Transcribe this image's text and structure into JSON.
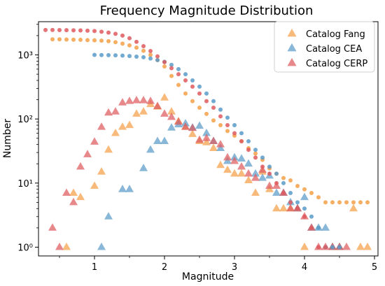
{
  "chart_data": {
    "type": "scatter",
    "title": "Frequency Magnitude Distribution",
    "xlabel": "Magnitude",
    "ylabel": "Number",
    "xlim": [
      0.2,
      5.05
    ],
    "ylim": [
      0.73,
      3300
    ],
    "yscale": "log",
    "grid": false,
    "legend_position": "top-right",
    "x_ticks": [
      1,
      2,
      3,
      4,
      5
    ],
    "x_tick_labels": [
      "1",
      "2",
      "3",
      "4",
      "5"
    ],
    "y_ticks": [
      1,
      10,
      100,
      1000
    ],
    "y_tick_labels": [
      "10⁰",
      "10¹",
      "10²",
      "10³"
    ],
    "series": [
      {
        "name": "Catalog Fang",
        "color": "#f5a048",
        "marker": "triangle",
        "kind": "non-cumulative",
        "x": [
          0.6,
          0.7,
          0.8,
          1.0,
          1.1,
          1.2,
          1.3,
          1.4,
          1.5,
          1.6,
          1.7,
          1.8,
          1.9,
          2.0,
          2.1,
          2.2,
          2.3,
          2.4,
          2.5,
          2.6,
          2.7,
          2.8,
          2.9,
          3.0,
          3.1,
          3.2,
          3.3,
          3.4,
          3.5,
          3.6,
          3.7,
          3.8,
          3.9,
          4.0,
          4.4,
          4.5,
          4.7,
          4.8,
          4.9
        ],
        "y": [
          1,
          7,
          6,
          9,
          15,
          33,
          60,
          75,
          80,
          120,
          130,
          170,
          155,
          215,
          130,
          92,
          75,
          58,
          45,
          43,
          35,
          19,
          16,
          14,
          14,
          11,
          7,
          15,
          8,
          4,
          4,
          4,
          4,
          1,
          1,
          1,
          4,
          1,
          1
        ]
      },
      {
        "name": "Catalog CEA",
        "color": "#5a9bc9",
        "marker": "triangle",
        "kind": "non-cumulative",
        "x": [
          1.1,
          1.2,
          1.4,
          1.5,
          1.7,
          1.8,
          1.9,
          2.0,
          2.1,
          2.2,
          2.3,
          2.4,
          2.5,
          2.6,
          2.7,
          2.8,
          2.9,
          3.0,
          3.1,
          3.2,
          3.3,
          3.4,
          3.5,
          3.6,
          3.7,
          3.8,
          3.9,
          4.0,
          4.1,
          4.2,
          4.3,
          4.4,
          4.5
        ],
        "y": [
          1,
          3,
          8,
          8,
          17,
          33,
          45,
          45,
          73,
          82,
          85,
          73,
          78,
          60,
          45,
          35,
          22,
          25,
          24,
          20,
          14,
          12,
          13,
          7,
          7,
          5,
          4,
          6,
          2,
          2,
          2,
          1,
          1
        ]
      },
      {
        "name": "Catalog CERP",
        "color": "#de5a5e",
        "marker": "triangle",
        "kind": "non-cumulative",
        "x": [
          0.4,
          0.5,
          0.6,
          0.7,
          0.8,
          0.9,
          1.0,
          1.1,
          1.2,
          1.3,
          1.4,
          1.5,
          1.6,
          1.7,
          1.8,
          1.9,
          2.0,
          2.1,
          2.2,
          2.3,
          2.4,
          2.5,
          2.6,
          2.7,
          2.8,
          2.9,
          3.0,
          3.1,
          3.2,
          3.3,
          3.4,
          3.5,
          3.6,
          3.7,
          3.8,
          3.9,
          4.0,
          4.1,
          4.2,
          4.3,
          4.4,
          4.5,
          4.6
        ],
        "y": [
          2,
          1,
          7,
          5,
          18,
          28,
          44,
          75,
          125,
          130,
          180,
          190,
          195,
          195,
          190,
          158,
          120,
          107,
          90,
          75,
          72,
          47,
          50,
          45,
          40,
          25,
          22,
          18,
          14,
          12,
          16,
          9,
          9,
          7,
          4,
          4,
          3,
          2,
          1,
          1,
          1,
          1,
          1
        ]
      },
      {
        "name": "",
        "color": "#f5a048",
        "marker": "circle",
        "kind": "cumulative",
        "x": [
          0.4,
          0.5,
          0.6,
          0.7,
          0.8,
          0.9,
          1.0,
          1.1,
          1.2,
          1.3,
          1.4,
          1.5,
          1.6,
          1.7,
          1.8,
          1.9,
          2.0,
          2.1,
          2.2,
          2.3,
          2.4,
          2.5,
          2.6,
          2.7,
          2.8,
          2.9,
          3.0,
          3.1,
          3.2,
          3.3,
          3.4,
          3.5,
          3.6,
          3.7,
          3.8,
          3.9,
          4.0,
          4.1,
          4.2,
          4.3,
          4.4,
          4.5,
          4.6,
          4.7,
          4.8,
          4.9
        ],
        "y": [
          1750,
          1750,
          1740,
          1730,
          1720,
          1700,
          1690,
          1670,
          1640,
          1580,
          1500,
          1410,
          1300,
          1160,
          1000,
          830,
          660,
          470,
          340,
          250,
          190,
          150,
          120,
          95,
          80,
          65,
          55,
          45,
          35,
          29,
          23,
          17,
          14,
          12,
          11,
          9,
          8,
          7,
          6,
          5,
          5,
          5,
          5,
          5,
          5,
          5
        ]
      },
      {
        "name": "",
        "color": "#5a9bc9",
        "marker": "circle",
        "kind": "cumulative",
        "x": [
          1.0,
          1.1,
          1.2,
          1.3,
          1.4,
          1.5,
          1.6,
          1.7,
          1.8,
          1.9,
          2.0,
          2.1,
          2.2,
          2.3,
          2.4,
          2.5,
          2.6,
          2.7,
          2.8,
          2.9,
          3.0,
          3.1,
          3.2,
          3.3,
          3.4,
          3.5,
          3.6,
          3.7,
          3.8,
          3.9,
          4.0,
          4.1,
          4.2,
          4.3,
          4.4,
          4.5
        ],
        "y": [
          1000,
          995,
          990,
          985,
          975,
          960,
          940,
          920,
          880,
          830,
          780,
          700,
          600,
          500,
          400,
          320,
          250,
          190,
          140,
          105,
          80,
          60,
          45,
          33,
          25,
          18,
          14,
          10,
          7,
          5,
          4,
          3,
          2,
          1,
          1,
          1
        ]
      },
      {
        "name": "",
        "color": "#de5a5e",
        "marker": "circle",
        "kind": "cumulative",
        "x": [
          0.3,
          0.4,
          0.5,
          0.6,
          0.7,
          0.8,
          0.9,
          1.0,
          1.1,
          1.2,
          1.3,
          1.4,
          1.5,
          1.6,
          1.7,
          1.8,
          1.9,
          2.0,
          2.1,
          2.2,
          2.3,
          2.4,
          2.5,
          2.6,
          2.7,
          2.8,
          2.9,
          3.0,
          3.1,
          3.2,
          3.3,
          3.4,
          3.5,
          3.6,
          3.7,
          3.8,
          3.9,
          4.0,
          4.1,
          4.2,
          4.3
        ],
        "y": [
          2450,
          2450,
          2440,
          2430,
          2420,
          2410,
          2390,
          2360,
          2300,
          2230,
          2130,
          2000,
          1820,
          1600,
          1370,
          1150,
          950,
          770,
          620,
          500,
          400,
          320,
          250,
          190,
          150,
          110,
          80,
          60,
          45,
          33,
          25,
          18,
          14,
          10,
          7,
          5,
          4,
          3,
          2,
          1,
          1
        ]
      }
    ]
  }
}
